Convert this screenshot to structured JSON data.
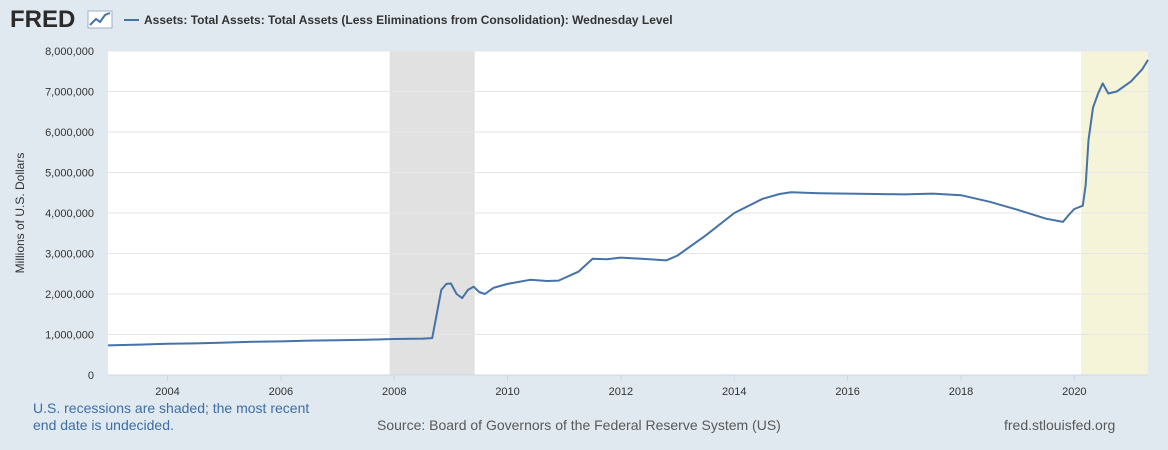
{
  "header": {
    "logo_text": "FRED",
    "logo_icon": "line-chart-icon",
    "legend_label": "Assets: Total Assets: Total Assets (Less Eliminations from Consolidation): Wednesday Level"
  },
  "colors": {
    "series": "#4572a7",
    "recession_shade": "#e1e1e1",
    "highlight_shade": "#f5f4d8",
    "background": "#e1e9f0",
    "plot_bg": "#ffffff",
    "note_text": "#3c6ea5"
  },
  "footer": {
    "note": "U.S. recessions are shaded; the most recent end date is undecided.",
    "source": "Source: Board of Governors of the Federal Reserve System (US)",
    "site": "fred.stlouisfed.org"
  },
  "chart_data": {
    "type": "line",
    "ylabel": "Millions of U.S. Dollars",
    "ylim": [
      0,
      8000000
    ],
    "yticks": [
      0,
      1000000,
      2000000,
      3000000,
      4000000,
      5000000,
      6000000,
      7000000,
      8000000
    ],
    "ytick_labels": [
      "0",
      "1,000,000",
      "2,000,000",
      "3,000,000",
      "4,000,000",
      "5,000,000",
      "6,000,000",
      "7,000,000",
      "8,000,000"
    ],
    "xlim": [
      2002.95,
      2021.3
    ],
    "xticks": [
      2004,
      2006,
      2008,
      2010,
      2012,
      2014,
      2016,
      2018,
      2020
    ],
    "xtick_labels": [
      "2004",
      "2006",
      "2008",
      "2010",
      "2012",
      "2014",
      "2016",
      "2018",
      "2020"
    ],
    "grid": "horizontal",
    "shaded_regions": [
      {
        "from": 2007.92,
        "to": 2009.42,
        "kind": "recession"
      },
      {
        "from": 2020.12,
        "to": 2021.3,
        "kind": "recession-undecided"
      }
    ],
    "series": [
      {
        "name": "Assets: Total Assets: Total Assets (Less Eliminations from Consolidation): Wednesday Level",
        "x": [
          2002.95,
          2003.5,
          2004.0,
          2004.5,
          2005.0,
          2005.5,
          2006.0,
          2006.5,
          2007.0,
          2007.5,
          2008.0,
          2008.5,
          2008.67,
          2008.75,
          2008.83,
          2008.92,
          2009.0,
          2009.1,
          2009.2,
          2009.3,
          2009.4,
          2009.5,
          2009.6,
          2009.75,
          2010.0,
          2010.4,
          2010.7,
          2010.9,
          2011.25,
          2011.5,
          2011.75,
          2012.0,
          2012.5,
          2012.8,
          2013.0,
          2013.5,
          2014.0,
          2014.5,
          2014.8,
          2015.0,
          2015.5,
          2016.0,
          2016.5,
          2017.0,
          2017.5,
          2018.0,
          2018.5,
          2019.0,
          2019.5,
          2019.8,
          2019.9,
          2020.0,
          2020.15,
          2020.2,
          2020.25,
          2020.33,
          2020.42,
          2020.5,
          2020.6,
          2020.75,
          2021.0,
          2021.2,
          2021.3
        ],
        "values": [
          730000,
          750000,
          770000,
          780000,
          800000,
          820000,
          830000,
          850000,
          860000,
          870000,
          890000,
          900000,
          910000,
          1500000,
          2100000,
          2250000,
          2260000,
          2000000,
          1900000,
          2100000,
          2180000,
          2050000,
          2000000,
          2150000,
          2250000,
          2350000,
          2320000,
          2330000,
          2550000,
          2870000,
          2860000,
          2900000,
          2860000,
          2830000,
          2950000,
          3450000,
          4000000,
          4350000,
          4470000,
          4510000,
          4490000,
          4480000,
          4470000,
          4460000,
          4480000,
          4440000,
          4280000,
          4080000,
          3860000,
          3780000,
          3950000,
          4100000,
          4180000,
          4700000,
          5800000,
          6600000,
          6950000,
          7200000,
          6950000,
          7000000,
          7250000,
          7550000,
          7780000
        ]
      }
    ]
  }
}
